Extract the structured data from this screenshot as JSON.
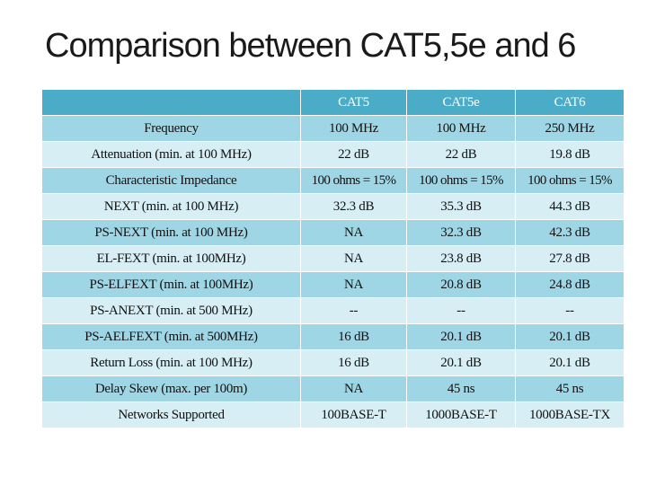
{
  "title": "Comparison between CAT5,5e and 6",
  "table": {
    "headers": [
      "",
      "CAT5",
      "CAT5e",
      "CAT6"
    ],
    "rows": [
      [
        "Frequency",
        "100 MHz",
        "100 MHz",
        "250 MHz"
      ],
      [
        "Attenuation (min. at 100 MHz)",
        "22 dB",
        "22 dB",
        "19.8 dB"
      ],
      [
        "Characteristic Impedance",
        "100 ohms = 15%",
        "100 ohms = 15%",
        "100 ohms = 15%"
      ],
      [
        "NEXT (min. at 100 MHz)",
        "32.3 dB",
        "35.3 dB",
        "44.3 dB"
      ],
      [
        "PS-NEXT (min. at 100 MHz)",
        "NA",
        "32.3 dB",
        "42.3 dB"
      ],
      [
        "EL-FEXT (min. at 100MHz)",
        "NA",
        "23.8 dB",
        "27.8 dB"
      ],
      [
        "PS-ELFEXT (min. at 100MHz)",
        "NA",
        "20.8 dB",
        "24.8 dB"
      ],
      [
        "PS-ANEXT (min. at 500 MHz)",
        "--",
        "--",
        "--"
      ],
      [
        "PS-AELFEXT (min. at 500MHz)",
        "16 dB",
        "20.1 dB",
        "20.1 dB"
      ],
      [
        "Return Loss (min. at 100 MHz)",
        "16 dB",
        "20.1 dB",
        "20.1 dB"
      ],
      [
        "Delay Skew (max. per 100m)",
        "NA",
        "45 ns",
        "45 ns"
      ],
      [
        "Networks Supported",
        "100BASE-T",
        "1000BASE-T",
        "1000BASE-TX"
      ]
    ]
  },
  "colors": {
    "header": "#4aacc6",
    "row_dark": "#9fd6e5",
    "row_light": "#d6eef4"
  }
}
